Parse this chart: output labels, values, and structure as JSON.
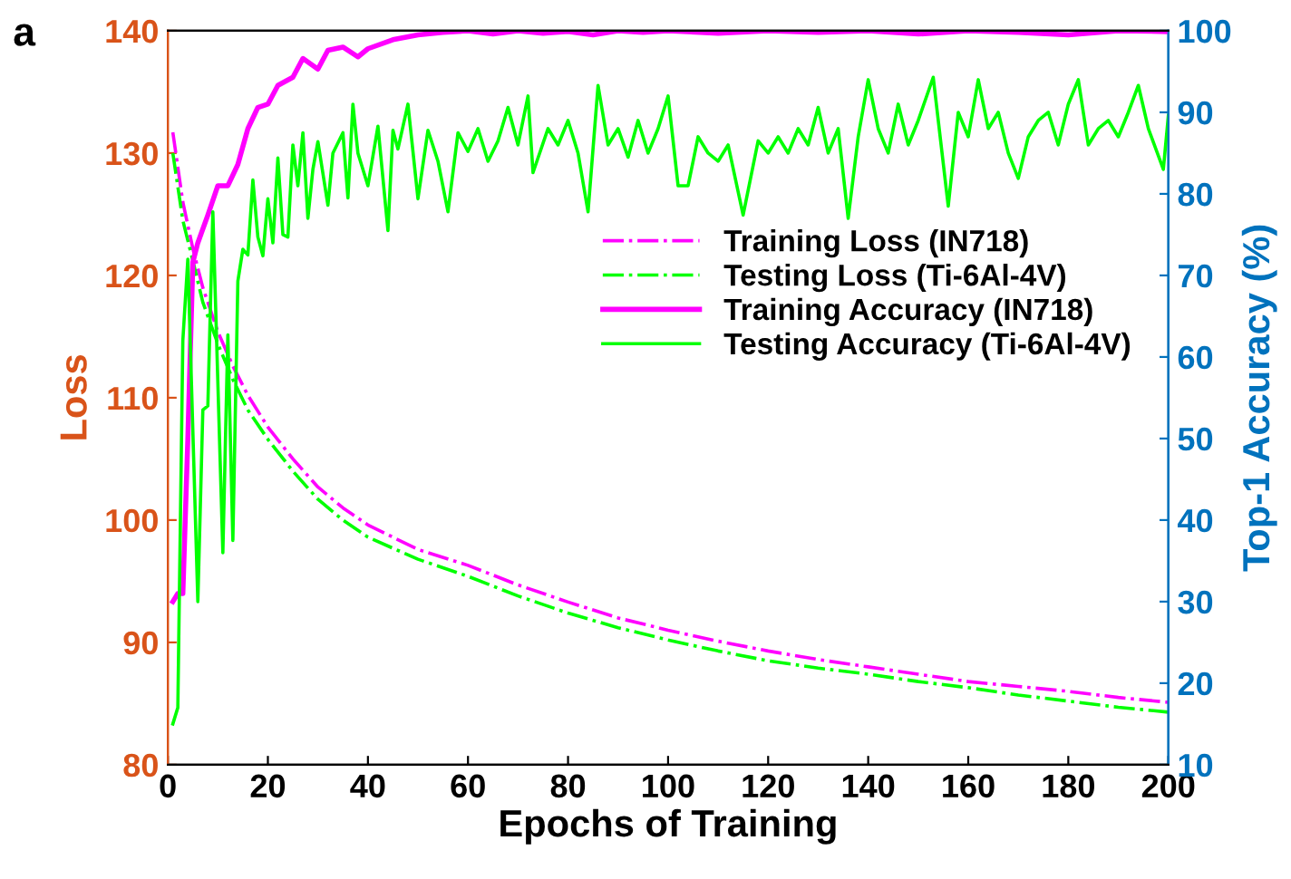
{
  "chart_data": {
    "type": "line",
    "xlabel": "Epochs of Training",
    "ylabel": "Loss",
    "y2label": "Top-1 Accuracy (%)",
    "annotations": [
      "a"
    ],
    "xlim": [
      0,
      200
    ],
    "xticks": [
      0,
      20,
      40,
      60,
      80,
      100,
      120,
      140,
      160,
      180,
      200
    ],
    "ylim": [
      80,
      140
    ],
    "yticks": [
      80,
      90,
      100,
      110,
      120,
      130,
      140
    ],
    "y2lim": [
      10,
      100
    ],
    "y2ticks": [
      10,
      20,
      30,
      40,
      50,
      60,
      70,
      80,
      90,
      100
    ],
    "grid": false,
    "legend": "right",
    "marker": "none",
    "series": [
      {
        "name": "Training Loss (IN718)",
        "color": "#ff00ff",
        "line_style": "dashdot",
        "x": [
          1,
          3,
          5,
          7,
          10,
          13,
          16,
          20,
          25,
          30,
          35,
          40,
          50,
          60,
          70,
          80,
          90,
          100,
          110,
          120,
          130,
          140,
          150,
          160,
          170,
          180,
          190,
          200
        ],
        "values": [
          131.7,
          126,
          122.2,
          119,
          115.4,
          112.6,
          110.2,
          107.6,
          105,
          102.7,
          101,
          99.6,
          97.6,
          96.3,
          94.7,
          93.3,
          92,
          91,
          90.1,
          89.3,
          88.6,
          88,
          87.4,
          86.8,
          86.4,
          86,
          85.5,
          85.1
        ]
      },
      {
        "name": "Testing Loss (Ti-6Al-4V)",
        "color": "#00ff00",
        "line_style": "dashdot",
        "x": [
          1,
          3,
          5,
          7,
          10,
          13,
          16,
          20,
          25,
          30,
          35,
          40,
          50,
          60,
          70,
          80,
          90,
          100,
          110,
          120,
          130,
          140,
          150,
          160,
          170,
          180,
          190,
          200
        ],
        "values": [
          130,
          124.5,
          121.2,
          117.8,
          114.4,
          111.5,
          109,
          106.6,
          104,
          101.7,
          100,
          98.6,
          96.8,
          95.4,
          93.8,
          92.4,
          91.2,
          90.2,
          89.3,
          88.5,
          87.9,
          87.4,
          86.8,
          86.3,
          85.7,
          85.2,
          84.7,
          84.3
        ]
      },
      {
        "name": "Training Accuracy (IN718)",
        "color": "#ff00ff",
        "line_style": "solid",
        "axis": "y2",
        "x": [
          1,
          2,
          3,
          4,
          5,
          6,
          8,
          10,
          12,
          14,
          16,
          18,
          20,
          22,
          25,
          27,
          30,
          32,
          35,
          38,
          40,
          45,
          50,
          55,
          60,
          65,
          70,
          75,
          80,
          85,
          90,
          95,
          100,
          110,
          120,
          130,
          140,
          150,
          160,
          170,
          180,
          190,
          200
        ],
        "values": [
          30,
          31,
          31,
          50,
          71.6,
          74,
          77.4,
          81,
          81,
          83.6,
          88,
          90.6,
          91,
          93.3,
          94.3,
          96.6,
          95.3,
          97.6,
          98,
          96.8,
          97.8,
          98.9,
          99.5,
          99.8,
          100,
          99.6,
          100,
          99.7,
          99.9,
          99.5,
          100,
          99.8,
          100,
          99.7,
          100,
          99.8,
          100,
          99.6,
          100,
          99.8,
          99.5,
          100,
          99.9
        ]
      },
      {
        "name": "Testing Accuracy (Ti-6Al-4V)",
        "color": "#00ff00",
        "line_style": "solid",
        "axis": "y2",
        "x": [
          1,
          2,
          3,
          4,
          6,
          7,
          8,
          9,
          11,
          12,
          13,
          14,
          15,
          16,
          17,
          18,
          19,
          20,
          21,
          22,
          23,
          24,
          25,
          26,
          27,
          28,
          29,
          30,
          32,
          33,
          35,
          36,
          37,
          38,
          40,
          42,
          44,
          45,
          46,
          48,
          50,
          52,
          54,
          56,
          58,
          60,
          62,
          64,
          66,
          68,
          70,
          72,
          73,
          76,
          78,
          80,
          82,
          84,
          86,
          88,
          90,
          92,
          94,
          96,
          98,
          100,
          102,
          104,
          106,
          108,
          110,
          112,
          115,
          118,
          120,
          122,
          124,
          126,
          128,
          130,
          132,
          134,
          136,
          138,
          140,
          142,
          144,
          146,
          148,
          150,
          153,
          156,
          158,
          160,
          162,
          164,
          166,
          168,
          170,
          172,
          174,
          176,
          178,
          180,
          182,
          184,
          186,
          188,
          190,
          192,
          194,
          196,
          199,
          200
        ],
        "values": [
          15,
          17,
          62,
          72,
          30,
          53.5,
          54,
          77.8,
          36,
          62.7,
          37.5,
          69.3,
          73.2,
          72.5,
          81.7,
          74.7,
          72.4,
          79.4,
          74,
          84.4,
          75,
          74.7,
          86,
          81,
          87.5,
          77,
          83,
          86.4,
          78.6,
          85,
          87.5,
          79.5,
          91,
          85,
          81,
          88.3,
          75.5,
          87.8,
          85.5,
          91,
          79.4,
          87.8,
          84,
          77.8,
          87.5,
          85.2,
          88,
          84,
          86.5,
          90.6,
          86,
          92,
          82.6,
          88,
          86,
          89,
          85,
          77.8,
          93.3,
          86,
          88,
          84.5,
          89,
          85,
          88,
          92,
          81,
          81,
          87,
          85,
          84,
          86,
          77.4,
          86.5,
          85,
          87,
          85,
          88,
          86,
          90.6,
          85,
          88,
          77,
          87,
          94,
          88,
          85,
          91,
          86,
          89,
          94.3,
          78.5,
          90,
          87,
          94,
          88,
          90,
          85,
          81.9,
          87,
          89,
          90,
          86,
          91,
          94,
          86,
          88,
          89,
          87,
          90,
          93.3,
          88,
          83,
          89.6
        ]
      }
    ]
  }
}
